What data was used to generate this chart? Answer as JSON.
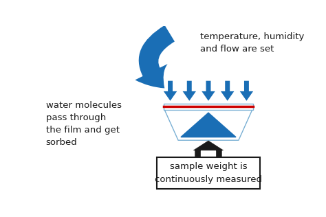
{
  "bg_color": "#ffffff",
  "blue": "#1a6eb5",
  "blue_light": "#7ab0d4",
  "red_color": "#cc0000",
  "text_color": "#1a1a1a",
  "label_top_right": "temperature, humidity\nand flow are set",
  "label_left": "water molecules\npass through\nthe film and get\nsorbed",
  "label_bottom": "sample weight is\ncontinuously measured",
  "fig_width": 4.74,
  "fig_height": 3.16,
  "dpi": 100
}
